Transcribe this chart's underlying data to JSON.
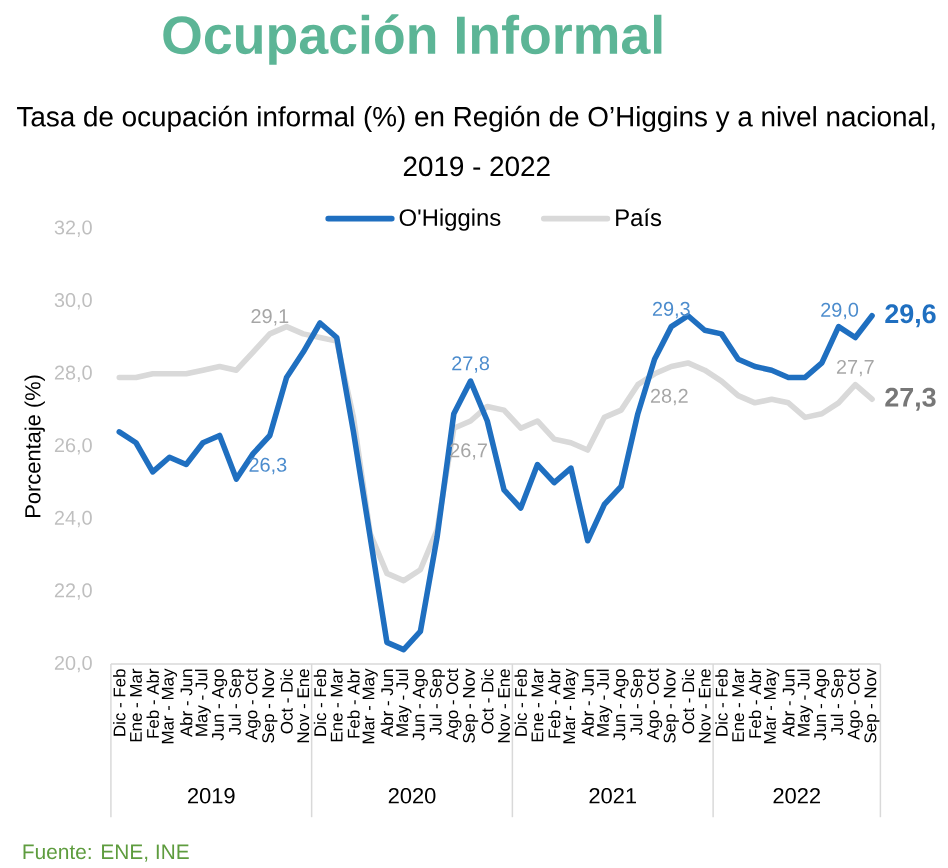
{
  "chart_data": {
    "type": "line",
    "title": "Ocupación Informal",
    "subtitle": "Tasa de ocupación informal (%) en Región de O’Higgins y a nivel nacional, 2019 - 2022",
    "ylabel": "Porcentaje (%)",
    "categories": [
      "Dic - Feb",
      "Ene - Mar",
      "Feb - Abr",
      "Mar - May",
      "Abr - Jun",
      "May - Jul",
      "Jun - Ago",
      "Jul - Sep",
      "Ago - Oct",
      "Sep - Nov",
      "Oct - Dic",
      "Nov - Ene",
      "Dic - Feb",
      "Ene - Mar",
      "Feb - Abr",
      "Mar - May",
      "Abr - Jun",
      "May - Jul",
      "Jun - Ago",
      "Jul - Sep",
      "Ago - Oct",
      "Sep - Nov",
      "Oct - Dic",
      "Nov - Ene",
      "Dic - Feb",
      "Ene - Mar",
      "Feb - Abr",
      "Mar - May",
      "Abr - Jun",
      "May - Jul",
      "Jun - Ago",
      "Jul - Sep",
      "Ago - Oct",
      "Sep - Nov",
      "Oct - Dic",
      "Nov - Ene",
      "Dic - Feb",
      "Ene - Mar",
      "Feb - Abr",
      "Mar - May",
      "Abr - Jun",
      "May - Jul",
      "Jun - Ago",
      "Jul - Sep",
      "Ago - Oct",
      "Sep - Nov"
    ],
    "series": [
      {
        "name": "O'Higgins",
        "color": "#1f6fc0",
        "values": [
          26.4,
          26.1,
          25.3,
          25.7,
          25.5,
          26.1,
          26.3,
          25.1,
          25.8,
          26.3,
          27.9,
          28.6,
          29.4,
          29.0,
          26.4,
          23.5,
          20.6,
          20.4,
          20.9,
          23.5,
          26.9,
          27.8,
          26.7,
          24.8,
          24.3,
          25.5,
          25.0,
          25.4,
          23.4,
          24.4,
          24.9,
          26.9,
          28.4,
          29.3,
          29.6,
          29.2,
          29.1,
          28.4,
          28.2,
          28.1,
          27.9,
          27.9,
          28.3,
          29.3,
          29.0,
          29.6
        ],
        "value_labels": [
          null,
          null,
          null,
          null,
          null,
          null,
          null,
          null,
          null,
          "26,3",
          null,
          null,
          null,
          null,
          null,
          null,
          null,
          null,
          null,
          null,
          null,
          "27,8",
          null,
          null,
          null,
          null,
          null,
          null,
          null,
          null,
          null,
          null,
          null,
          "29,3",
          null,
          null,
          null,
          null,
          null,
          null,
          null,
          null,
          null,
          null,
          "29,0",
          "29,6"
        ]
      },
      {
        "name": "País",
        "color": "#d9d9d9",
        "values": [
          27.9,
          27.9,
          28.0,
          28.0,
          28.0,
          28.1,
          28.2,
          28.1,
          28.6,
          29.1,
          29.3,
          29.1,
          29.0,
          28.9,
          26.8,
          23.6,
          22.5,
          22.3,
          22.6,
          23.7,
          26.5,
          26.7,
          27.1,
          27.0,
          26.5,
          26.7,
          26.2,
          26.1,
          25.9,
          26.8,
          27.0,
          27.7,
          28.0,
          28.2,
          28.3,
          28.1,
          27.8,
          27.4,
          27.2,
          27.3,
          27.2,
          26.8,
          26.9,
          27.2,
          27.7,
          27.3
        ],
        "value_labels": [
          null,
          null,
          null,
          null,
          null,
          null,
          null,
          null,
          null,
          "29,1",
          null,
          null,
          null,
          null,
          null,
          null,
          null,
          null,
          null,
          null,
          null,
          "26,7",
          null,
          null,
          null,
          null,
          null,
          null,
          null,
          null,
          null,
          null,
          null,
          "28,2",
          null,
          null,
          null,
          null,
          null,
          null,
          null,
          null,
          null,
          null,
          "27,7",
          "27,3"
        ]
      }
    ],
    "ylim": [
      20,
      32
    ],
    "yticks": [
      {
        "value": 20,
        "label": "20,0"
      },
      {
        "value": 22,
        "label": "22,0"
      },
      {
        "value": 24,
        "label": "24,0"
      },
      {
        "value": 26,
        "label": "26,0"
      },
      {
        "value": 28,
        "label": "28,0"
      },
      {
        "value": 30,
        "label": "30,0"
      },
      {
        "value": 32,
        "label": "32,0"
      }
    ],
    "legend": "top",
    "annotations": [
      "2019",
      "2020",
      "2021",
      "2022",
      "Fuente: ENE, INE"
    ]
  }
}
